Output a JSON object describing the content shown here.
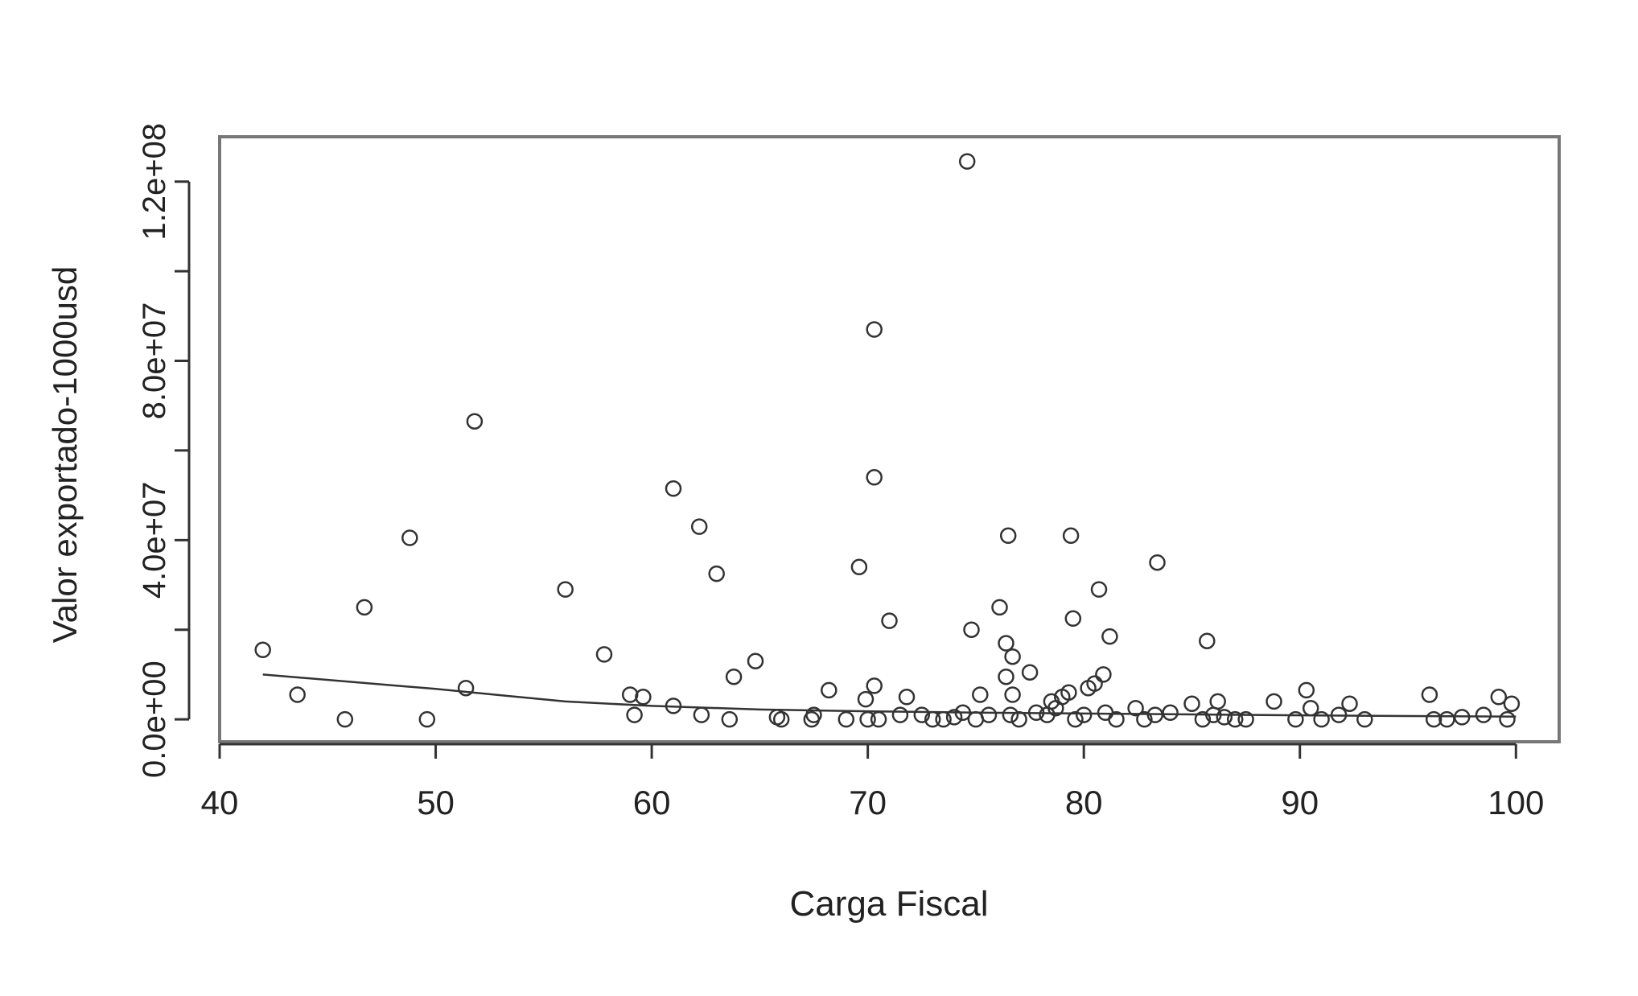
{
  "chart_data": {
    "type": "scatter",
    "xlabel": "Carga Fiscal",
    "ylabel": "Valor exportado-1000usd",
    "xlim": [
      40,
      102
    ],
    "ylim": [
      -5000000,
      130000000
    ],
    "x_ticks": [
      40,
      50,
      60,
      70,
      80,
      90,
      100
    ],
    "x_tick_labels": [
      "40",
      "50",
      "60",
      "70",
      "80",
      "90",
      "100"
    ],
    "y_ticks": [
      0,
      20000000,
      40000000,
      60000000,
      80000000,
      100000000,
      120000000
    ],
    "y_tick_labels": [
      "0.0e+00",
      "",
      "4.0e+07",
      "",
      "8.0e+07",
      "",
      "1.2e+08"
    ],
    "grid": false,
    "legend": "none",
    "colors": {
      "marker": "#333333",
      "axis": "#333333",
      "frame": "#777777",
      "trend": "#333333"
    },
    "series": [
      {
        "kind": "points",
        "marker": "open-circle",
        "points": [
          [
            42.0,
            15500000
          ],
          [
            43.6,
            5500000
          ],
          [
            45.8,
            0
          ],
          [
            46.7,
            25000000
          ],
          [
            48.8,
            40500000
          ],
          [
            49.6,
            0
          ],
          [
            51.4,
            7000000
          ],
          [
            51.8,
            66500000
          ],
          [
            56.0,
            29000000
          ],
          [
            57.8,
            14500000
          ],
          [
            59.0,
            5500000
          ],
          [
            59.2,
            1000000
          ],
          [
            59.6,
            5000000
          ],
          [
            61.0,
            51500000
          ],
          [
            61.0,
            3000000
          ],
          [
            62.2,
            43000000
          ],
          [
            62.3,
            1000000
          ],
          [
            63.0,
            32500000
          ],
          [
            63.6,
            0
          ],
          [
            63.8,
            9500000
          ],
          [
            64.8,
            13000000
          ],
          [
            65.8,
            500000
          ],
          [
            66.0,
            0
          ],
          [
            67.4,
            0
          ],
          [
            67.5,
            1000000
          ],
          [
            68.2,
            6500000
          ],
          [
            69.0,
            0
          ],
          [
            69.6,
            34000000
          ],
          [
            69.9,
            4500000
          ],
          [
            70.0,
            0
          ],
          [
            70.3,
            87000000
          ],
          [
            70.3,
            54000000
          ],
          [
            70.3,
            7500000
          ],
          [
            70.5,
            0
          ],
          [
            71.0,
            22000000
          ],
          [
            71.5,
            1000000
          ],
          [
            71.8,
            5000000
          ],
          [
            72.5,
            1000000
          ],
          [
            73.0,
            0
          ],
          [
            73.5,
            0
          ],
          [
            74.0,
            500000
          ],
          [
            74.4,
            1500000
          ],
          [
            74.6,
            124500000
          ],
          [
            74.8,
            20000000
          ],
          [
            75.0,
            0
          ],
          [
            75.2,
            5500000
          ],
          [
            75.6,
            1000000
          ],
          [
            76.1,
            25000000
          ],
          [
            76.4,
            17000000
          ],
          [
            76.4,
            9500000
          ],
          [
            76.5,
            41000000
          ],
          [
            76.6,
            1000000
          ],
          [
            76.7,
            14000000
          ],
          [
            76.7,
            5500000
          ],
          [
            77.0,
            0
          ],
          [
            77.5,
            10500000
          ],
          [
            77.8,
            1500000
          ],
          [
            78.3,
            1000000
          ],
          [
            78.5,
            4000000
          ],
          [
            78.7,
            2500000
          ],
          [
            79.0,
            5000000
          ],
          [
            79.3,
            6000000
          ],
          [
            79.4,
            41000000
          ],
          [
            79.5,
            22500000
          ],
          [
            79.6,
            0
          ],
          [
            80.0,
            1000000
          ],
          [
            80.2,
            7000000
          ],
          [
            80.5,
            8000000
          ],
          [
            80.7,
            29000000
          ],
          [
            80.9,
            10000000
          ],
          [
            81.0,
            1500000
          ],
          [
            81.2,
            18500000
          ],
          [
            81.5,
            0
          ],
          [
            82.4,
            2500000
          ],
          [
            82.8,
            0
          ],
          [
            83.3,
            1000000
          ],
          [
            83.4,
            35000000
          ],
          [
            84.0,
            1500000
          ],
          [
            85.0,
            3500000
          ],
          [
            85.5,
            0
          ],
          [
            85.7,
            17500000
          ],
          [
            86.0,
            1000000
          ],
          [
            86.2,
            4000000
          ],
          [
            86.5,
            500000
          ],
          [
            87.0,
            0
          ],
          [
            87.5,
            0
          ],
          [
            88.8,
            4000000
          ],
          [
            89.8,
            0
          ],
          [
            90.3,
            6500000
          ],
          [
            90.5,
            2500000
          ],
          [
            91.0,
            0
          ],
          [
            91.8,
            1000000
          ],
          [
            92.3,
            3500000
          ],
          [
            93.0,
            0
          ],
          [
            96.0,
            5500000
          ],
          [
            96.2,
            0
          ],
          [
            96.8,
            0
          ],
          [
            97.5,
            500000
          ],
          [
            98.5,
            1000000
          ],
          [
            99.2,
            5000000
          ],
          [
            99.6,
            0
          ],
          [
            99.8,
            3500000
          ]
        ]
      },
      {
        "kind": "line",
        "points": [
          [
            42,
            10000000
          ],
          [
            50,
            6800000
          ],
          [
            56,
            4000000
          ],
          [
            60,
            3000000
          ],
          [
            65,
            2200000
          ],
          [
            70,
            1800000
          ],
          [
            75,
            1500000
          ],
          [
            80,
            1300000
          ],
          [
            85,
            1100000
          ],
          [
            90,
            900000
          ],
          [
            95,
            750000
          ],
          [
            100,
            600000
          ]
        ]
      }
    ]
  }
}
